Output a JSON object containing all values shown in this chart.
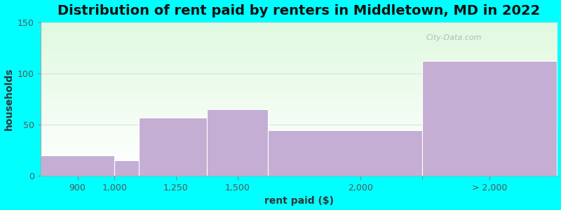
{
  "title": "Distribution of rent paid by renters in Middletown, MD in 2022",
  "xlabel": "rent paid ($)",
  "ylabel": "households",
  "bar_heights": [
    20,
    15,
    57,
    65,
    45,
    112
  ],
  "bin_edges": [
    700,
    1000,
    1100,
    1375,
    1625,
    2250,
    2800
  ],
  "tick_positions": [
    850,
    1000,
    1250,
    1500,
    2000,
    2525
  ],
  "tick_labels": [
    "900",
    "1,000",
    "1,250",
    "1,500",
    "2,000",
    "> 2,000"
  ],
  "bar_color": "#C4AED4",
  "bar_edgecolor": "#ffffff",
  "ylim": [
    0,
    150
  ],
  "yticks": [
    0,
    50,
    100,
    150
  ],
  "background_outer": "#00FFFF",
  "title_fontsize": 14,
  "axis_label_fontsize": 10,
  "tick_fontsize": 9,
  "watermark": "City-Data.com",
  "grid_color": "#dddddd"
}
